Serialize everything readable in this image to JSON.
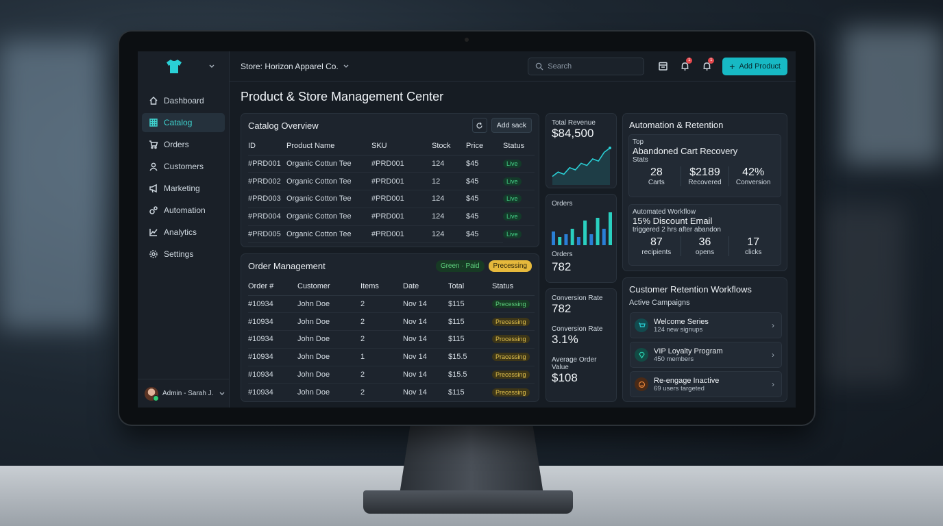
{
  "store": {
    "label": "Store: Horizon Apparel Co."
  },
  "search": {
    "placeholder": "Search"
  },
  "header": {
    "add_product": "Add Product",
    "notif_1": "1",
    "notif_2": "1"
  },
  "page_title": "Product & Store Management Center",
  "sidebar": {
    "items": [
      {
        "label": "Dashboard"
      },
      {
        "label": "Catalog"
      },
      {
        "label": "Orders"
      },
      {
        "label": "Customers"
      },
      {
        "label": "Marketing"
      },
      {
        "label": "Automation"
      },
      {
        "label": "Analytics"
      },
      {
        "label": "Settings"
      }
    ],
    "user": "Admin - Sarah J."
  },
  "catalog": {
    "title": "Catalog Overview",
    "add_btn": "Add sack",
    "columns": [
      "ID",
      "Product Name",
      "SKU",
      "Stock",
      "Price",
      "Status"
    ],
    "rows": [
      [
        "#PRD001",
        "Organic Cottun Tee",
        "#PRD001",
        "124",
        "$45",
        "Live"
      ],
      [
        "#PRD002",
        "Organic Cotton Tee",
        "#PRD001",
        "12",
        "$45",
        "Live"
      ],
      [
        "#PRD003",
        "Organic Cotton Tee",
        "#PRD001",
        "124",
        "$45",
        "Live"
      ],
      [
        "#PRD004",
        "Organic Cotton Tee",
        "#PRD001",
        "124",
        "$45",
        "Live"
      ],
      [
        "#PRD005",
        "Organic Cotton Tee",
        "#PRD001",
        "124",
        "$45",
        "Live"
      ]
    ]
  },
  "orders": {
    "title": "Order Management",
    "filter_green": "Green · Paid",
    "filter_processing": "Precessing",
    "columns": [
      "Order #",
      "Customer",
      "Items",
      "Date",
      "Total",
      "Status"
    ],
    "rows": [
      [
        "#10934",
        "John Doe",
        "2",
        "Nov 14",
        "$115",
        "Precessing"
      ],
      [
        "#10934",
        "John Doe",
        "2",
        "Nov 14",
        "$115",
        "Precessing"
      ],
      [
        "#10934",
        "John Doe",
        "2",
        "Nov 14",
        "$115",
        "Processing"
      ],
      [
        "#10934",
        "John Doe",
        "1",
        "Nov 14",
        "$15.5",
        "Pracessing"
      ],
      [
        "#10934",
        "John Doe",
        "2",
        "Nov 14",
        "$15.5",
        "Precessing"
      ],
      [
        "#10934",
        "John Doe",
        "2",
        "Nov 14",
        "$115",
        "Precessing"
      ]
    ]
  },
  "revenue": {
    "label": "Total Revenue",
    "value": "$84,500",
    "trend": [
      2,
      4,
      3,
      6,
      5,
      8,
      7,
      10,
      9,
      13,
      15
    ]
  },
  "orders_chart": {
    "label": "Orders",
    "count_label": "Orders",
    "count": "782",
    "bars": [
      5,
      3,
      4,
      6,
      3,
      9,
      4,
      10,
      6,
      12
    ]
  },
  "metrics": {
    "conv1_label": "Conversion Rate",
    "conv1_value": "782",
    "conv2_label": "Conversion Rate",
    "conv2_value": "3.1%",
    "aov_label": "Average Order Value",
    "aov_value": "$108"
  },
  "automation": {
    "title": "Automation & Retention",
    "card1": {
      "top": "Top",
      "name": "Abandoned Cart Recovery",
      "stats": "Stats",
      "s1n": "28",
      "s1l": "Carts",
      "s2n": "$2189",
      "s2l": "Recovered",
      "s3n": "42%",
      "s3l": "Conversion"
    },
    "card2": {
      "top": "Automated Workflow",
      "name": "15% Discount Email",
      "stats": "triggered 2 hrs after abandon",
      "s1n": "87",
      "s1l": "recipients",
      "s2n": "36",
      "s2l": "opens",
      "s3n": "17",
      "s3l": "clicks"
    }
  },
  "retention": {
    "title": "Customer Retention Workflows",
    "subtitle": "Active Campaigns",
    "campaigns": [
      {
        "name": "Welcome Series",
        "detail": "124 new signups",
        "color": "#1a9aa0"
      },
      {
        "name": "VIP Loyalty Program",
        "detail": "450 members",
        "color": "#1a8f8a"
      },
      {
        "name": "Re-engage Inactive",
        "detail": "69 users targeted",
        "color": "#c0632a"
      }
    ]
  },
  "colors": {
    "accent": "#17b9c4",
    "live": "#45d68a",
    "processing": "#e3c24d"
  }
}
